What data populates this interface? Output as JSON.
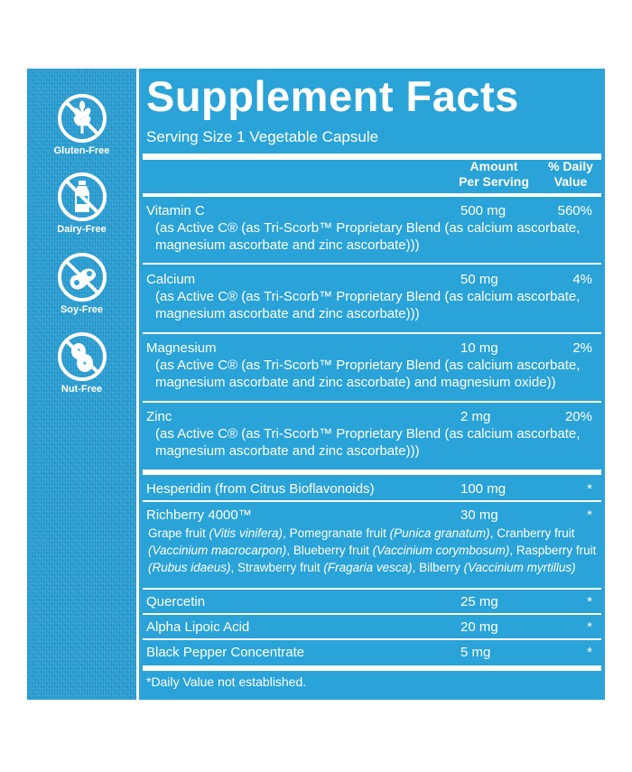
{
  "badges": [
    {
      "icon": "wheat-icon",
      "label": "Gluten-Free"
    },
    {
      "icon": "milk-bottle-icon",
      "label": "Dairy-Free"
    },
    {
      "icon": "soybean-icon",
      "label": "Soy-Free"
    },
    {
      "icon": "peanut-icon",
      "label": "Nut-Free"
    }
  ],
  "title": "Supplement Facts",
  "serving_size": "Serving Size 1 Vegetable Capsule",
  "headers": {
    "amount": "Amount\nPer Serving",
    "dv": "% Daily\nValue"
  },
  "rows": [
    {
      "name": "Vitamin C",
      "amount": "500 mg",
      "dv": "560%",
      "sub1": "(as Active C® (as Tri-Scorb™ Proprietary Blend (as calcium ascorbate,",
      "sub2": "magnesium ascorbate and zinc ascorbate)))"
    },
    {
      "name": "Calcium",
      "amount": "50 mg",
      "dv": "4%",
      "sub1": "(as Active C® (as Tri-Scorb™ Proprietary Blend (as calcium ascorbate,",
      "sub2": "magnesium ascorbate and zinc ascorbate)))"
    },
    {
      "name": "Magnesium",
      "amount": "10 mg",
      "dv": "2%",
      "sub1": "(as Active C® (as Tri-Scorb™ Proprietary Blend (as calcium ascorbate,",
      "sub2": "magnesium ascorbate and zinc ascorbate) and magnesium oxide))"
    },
    {
      "name": "Zinc",
      "amount": "2 mg",
      "dv": "20%",
      "sub1": "(as Active C® (as Tri-Scorb™ Proprietary Blend (as calcium ascorbate,",
      "sub2": "magnesium ascorbate and zinc ascorbate)))"
    },
    {
      "name": "Hesperidin (from Citrus Bioflavonoids)",
      "amount": "100 mg",
      "dv": "*"
    },
    {
      "name": "Richberry 4000™",
      "amount": "30 mg",
      "dv": "*",
      "fruits": [
        [
          "Grape fruit ",
          "(Vitis vinifera)",
          ", Pomegranate fruit ",
          "(Punica granatum)",
          ", Cranberry fruit"
        ],
        [
          "",
          "(Vaccinium macrocarpon)",
          ", Blueberry fruit ",
          "(Vaccinium corymbosum)",
          ", Raspberry fruit"
        ],
        [
          "",
          "(Rubus idaeus)",
          ", Strawberry fruit ",
          "(Fragaria vesca)",
          ", Bilberry ",
          "(Vaccinium myrtillus)"
        ]
      ]
    },
    {
      "name": "Quercetin",
      "amount": "25 mg",
      "dv": "*"
    },
    {
      "name": "Alpha Lipoic Acid",
      "amount": "20 mg",
      "dv": "*"
    },
    {
      "name": "Black Pepper Concentrate",
      "amount": "5 mg",
      "dv": "*"
    }
  ],
  "footnote": "*Daily Value not established."
}
